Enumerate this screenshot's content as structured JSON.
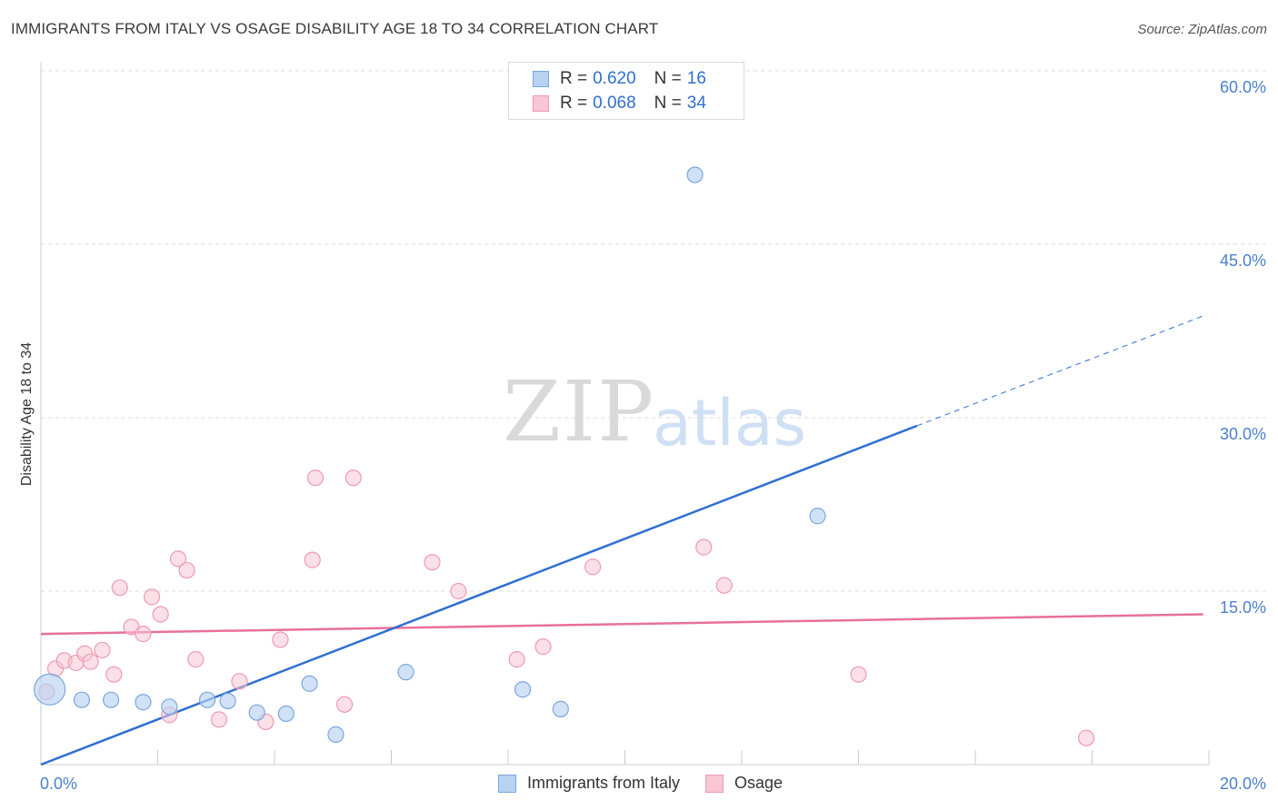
{
  "title": "IMMIGRANTS FROM ITALY VS OSAGE DISABILITY AGE 18 TO 34 CORRELATION CHART",
  "source": "Source: ZipAtlas.com",
  "watermark": {
    "zip": "ZIP",
    "atlas": "atlas"
  },
  "legend": {
    "rows": [
      {
        "r_label": "R =",
        "r_value": "0.620",
        "n_label": "N =",
        "n_value": "16"
      },
      {
        "r_label": "R =",
        "r_value": "0.068",
        "n_label": "N =",
        "n_value": "34"
      }
    ]
  },
  "colors": {
    "italy_fill": "#b8d2f3",
    "italy_stroke": "#7aa6e0",
    "italy_line": "#2e6fd2",
    "osage_fill": "#f8c6d4",
    "osage_stroke": "#ee9ab2",
    "osage_line": "#e8709a",
    "grid": "#dcdcdc",
    "tick_text": "#4a7fcf"
  },
  "chart_data": {
    "type": "scatter",
    "title": "IMMIGRANTS FROM ITALY VS OSAGE DISABILITY AGE 18 TO 34 CORRELATION CHART",
    "xlabel": "",
    "ylabel": "Disability Age 18 to 34",
    "xlim": [
      0,
      20
    ],
    "ylim": [
      0,
      60
    ],
    "x_ticks": [
      "0.0%",
      "20.0%"
    ],
    "y_ticks": [
      "15.0%",
      "30.0%",
      "45.0%",
      "60.0%"
    ],
    "y_tick_values": [
      15,
      30,
      45,
      60
    ],
    "grid": true,
    "legend_position": "top-center",
    "series": [
      {
        "name": "Immigrants from Italy",
        "points": [
          {
            "x": 0.15,
            "y": 6.5,
            "big": true
          },
          {
            "x": 0.7,
            "y": 5.6
          },
          {
            "x": 1.2,
            "y": 5.6
          },
          {
            "x": 1.75,
            "y": 5.4
          },
          {
            "x": 2.2,
            "y": 5.0
          },
          {
            "x": 2.85,
            "y": 5.6
          },
          {
            "x": 3.2,
            "y": 5.5
          },
          {
            "x": 3.7,
            "y": 4.5
          },
          {
            "x": 4.2,
            "y": 4.4
          },
          {
            "x": 4.6,
            "y": 7.0
          },
          {
            "x": 5.05,
            "y": 2.6
          },
          {
            "x": 6.25,
            "y": 8.0
          },
          {
            "x": 8.25,
            "y": 6.5
          },
          {
            "x": 8.9,
            "y": 4.8
          },
          {
            "x": 11.2,
            "y": 51.0
          },
          {
            "x": 13.3,
            "y": 21.5
          }
        ],
        "trend": {
          "x_start": 0,
          "y_start": 0.0,
          "x_solid_end": 15.0,
          "y_solid_end": 29.3,
          "x_end": 19.9,
          "y_end": 38.8
        }
      },
      {
        "name": "Osage",
        "points": [
          {
            "x": 0.1,
            "y": 6.3
          },
          {
            "x": 0.25,
            "y": 8.3
          },
          {
            "x": 0.4,
            "y": 9.0
          },
          {
            "x": 0.6,
            "y": 8.8
          },
          {
            "x": 0.75,
            "y": 9.6
          },
          {
            "x": 0.85,
            "y": 8.9
          },
          {
            "x": 1.05,
            "y": 9.9
          },
          {
            "x": 1.25,
            "y": 7.8
          },
          {
            "x": 1.35,
            "y": 15.3
          },
          {
            "x": 1.55,
            "y": 11.9
          },
          {
            "x": 1.75,
            "y": 11.3
          },
          {
            "x": 1.9,
            "y": 14.5
          },
          {
            "x": 2.05,
            "y": 13.0
          },
          {
            "x": 2.2,
            "y": 4.3
          },
          {
            "x": 2.35,
            "y": 17.8
          },
          {
            "x": 2.5,
            "y": 16.8
          },
          {
            "x": 2.65,
            "y": 9.1
          },
          {
            "x": 3.05,
            "y": 3.9
          },
          {
            "x": 3.4,
            "y": 7.2
          },
          {
            "x": 3.85,
            "y": 3.7
          },
          {
            "x": 4.1,
            "y": 10.8
          },
          {
            "x": 4.65,
            "y": 17.7
          },
          {
            "x": 4.7,
            "y": 24.8
          },
          {
            "x": 5.2,
            "y": 5.2
          },
          {
            "x": 5.35,
            "y": 24.8
          },
          {
            "x": 6.7,
            "y": 17.5
          },
          {
            "x": 7.15,
            "y": 15.0
          },
          {
            "x": 8.15,
            "y": 9.1
          },
          {
            "x": 8.6,
            "y": 10.2
          },
          {
            "x": 9.45,
            "y": 17.1
          },
          {
            "x": 11.35,
            "y": 18.8
          },
          {
            "x": 11.7,
            "y": 15.5
          },
          {
            "x": 14.0,
            "y": 7.8
          },
          {
            "x": 17.9,
            "y": 2.3
          }
        ],
        "trend": {
          "x_start": 0,
          "y_start": 11.3,
          "x_end": 19.9,
          "y_end": 13.0
        }
      }
    ]
  }
}
